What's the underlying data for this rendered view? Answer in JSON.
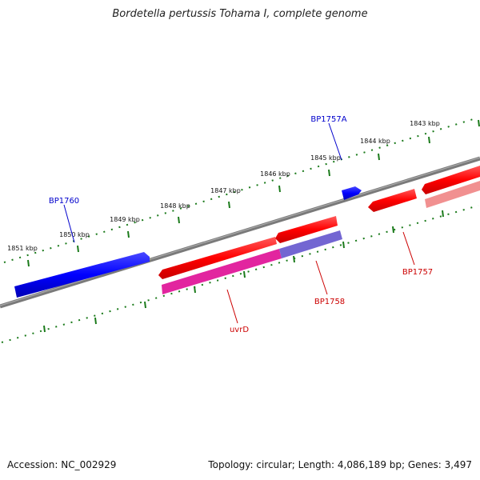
{
  "title": "Bordetella pertussis Tohama I, complete genome",
  "footer": {
    "accession": "Accession: NC_002929",
    "summary": "Topology: circular; Length: 4,086,189 bp; Genes: 3,497"
  },
  "scale": {
    "unit": "kbp",
    "labels": [
      "1851 kbp",
      "1850 kbp",
      "1849 kbp",
      "1848 kbp",
      "1847 kbp",
      "1846 kbp",
      "1845 kbp",
      "1844 kbp",
      "1843 kbp"
    ]
  },
  "genes": [
    {
      "name": "BP1760",
      "strand": "forward",
      "color": "#0000ff"
    },
    {
      "name": "BP1757A",
      "strand": "forward",
      "color": "#0000ff"
    },
    {
      "name": "uvrD",
      "strand": "reverse",
      "color": "#ff0000"
    },
    {
      "name": "BP1758",
      "strand": "reverse",
      "color": "#ff0000"
    },
    {
      "name": "BP1757",
      "strand": "reverse",
      "color": "#ff0000"
    }
  ],
  "colors": {
    "backbone": "#808080",
    "ticks": "#1a7a1a",
    "forward": "#0000ff",
    "reverse": "#ff0000",
    "forward_label": "#0000cc",
    "reverse_label": "#cc0000"
  }
}
